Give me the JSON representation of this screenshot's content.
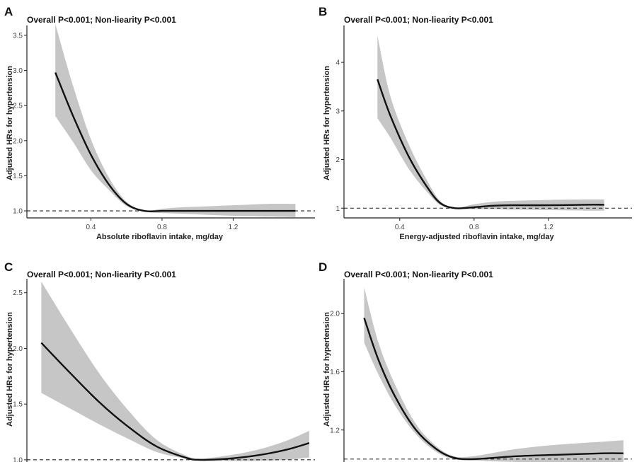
{
  "chart_data": [
    {
      "type": "line",
      "panel_label": "A",
      "title": "Overall P<0.001; Non-liearity P<0.001",
      "xlabel": "Absolute riboflavin intake, mg/day",
      "ylabel": "Adjusted HRs for hypertension",
      "xlim": [
        0.04,
        1.66
      ],
      "ylim": [
        0.9,
        3.6
      ],
      "xticks": [
        0.4,
        0.8,
        1.2
      ],
      "xtick_labels": [
        "0.4",
        "0.8",
        "1.2"
      ],
      "yticks": [
        1.0,
        1.5,
        2.0,
        2.5,
        3.0,
        3.5
      ],
      "ytick_labels": [
        "1.0",
        "1.5",
        "2.0",
        "2.5",
        "3.0",
        "3.5"
      ],
      "reference_y": 1.0,
      "series": [
        {
          "x": [
            0.2,
            0.3,
            0.4,
            0.5,
            0.6,
            0.7,
            0.8,
            0.9,
            1.0,
            1.2,
            1.4,
            1.55
          ],
          "y": [
            2.97,
            2.35,
            1.8,
            1.38,
            1.1,
            1.0,
            1.0,
            1.0,
            1.0,
            1.0,
            1.0,
            1.0
          ],
          "lower": [
            2.35,
            1.98,
            1.58,
            1.3,
            1.07,
            0.99,
            0.97,
            0.96,
            0.95,
            0.93,
            0.92,
            0.91
          ],
          "upper": [
            3.68,
            2.78,
            2.02,
            1.48,
            1.13,
            1.01,
            1.03,
            1.05,
            1.06,
            1.08,
            1.1,
            1.1
          ]
        }
      ]
    },
    {
      "type": "line",
      "panel_label": "B",
      "title": "Overall P<0.001; Non-liearity P<0.001",
      "xlabel": "Energy-adjusted riboflavin intake, mg/day",
      "ylabel": "Adjusted HRs for hypertension",
      "xlim": [
        0.1,
        1.65
      ],
      "ylim": [
        0.8,
        4.7
      ],
      "xticks": [
        0.4,
        0.8,
        1.2
      ],
      "xtick_labels": [
        "0.4",
        "0.8",
        "1.2"
      ],
      "yticks": [
        1,
        2,
        3,
        4
      ],
      "ytick_labels": [
        "1",
        "2",
        "3",
        "4"
      ],
      "reference_y": 1.0,
      "series": [
        {
          "x": [
            0.28,
            0.35,
            0.45,
            0.55,
            0.62,
            0.7,
            0.8,
            0.9,
            1.0,
            1.2,
            1.4,
            1.5
          ],
          "y": [
            3.65,
            2.9,
            2.05,
            1.42,
            1.1,
            1.0,
            1.02,
            1.05,
            1.06,
            1.06,
            1.07,
            1.07
          ],
          "lower": [
            2.85,
            2.45,
            1.8,
            1.32,
            1.06,
            0.99,
            0.98,
            0.98,
            0.97,
            0.96,
            0.95,
            0.95
          ],
          "upper": [
            4.55,
            3.3,
            2.3,
            1.55,
            1.14,
            1.01,
            1.08,
            1.13,
            1.15,
            1.17,
            1.18,
            1.18
          ]
        }
      ]
    },
    {
      "type": "line",
      "panel_label": "C",
      "title": "Overall P<0.001; Non-liearity P<0.001",
      "xlabel": "",
      "ylabel": "Adjusted HRs for hypertension",
      "xlim": [
        0,
        1
      ],
      "ylim": [
        0.98,
        2.6
      ],
      "xticks": [],
      "xtick_labels": [],
      "yticks": [
        1.0,
        1.5,
        2.0,
        2.5
      ],
      "ytick_labels": [
        "1.0",
        "1.5",
        "2.0",
        "2.5"
      ],
      "reference_y": 1.0,
      "series": [
        {
          "x": [
            0.05,
            0.15,
            0.25,
            0.35,
            0.45,
            0.55,
            0.6,
            0.7,
            0.8,
            0.9,
            0.98
          ],
          "y": [
            2.05,
            1.78,
            1.52,
            1.3,
            1.12,
            1.02,
            1.0,
            1.01,
            1.04,
            1.09,
            1.15
          ],
          "lower": [
            1.6,
            1.46,
            1.32,
            1.19,
            1.07,
            1.01,
            0.99,
            0.99,
            0.99,
            1.0,
            1.02
          ],
          "upper": [
            2.6,
            2.18,
            1.78,
            1.45,
            1.18,
            1.04,
            1.01,
            1.04,
            1.09,
            1.17,
            1.26
          ]
        }
      ]
    },
    {
      "type": "line",
      "panel_label": "D",
      "title": "Overall P<0.001; Non-liearity P<0.001",
      "xlabel": "",
      "ylabel": "Adjusted HRs for hypertension",
      "xlim": [
        0,
        1
      ],
      "ylim": [
        0.98,
        2.22
      ],
      "xticks": [],
      "xtick_labels": [],
      "yticks": [
        1.2,
        1.6,
        2.0
      ],
      "ytick_labels": [
        "1.2",
        "1.6",
        "2.0"
      ],
      "reference_y": 1.0,
      "series": [
        {
          "x": [
            0.07,
            0.12,
            0.18,
            0.25,
            0.32,
            0.38,
            0.45,
            0.6,
            0.75,
            0.9,
            0.97
          ],
          "y": [
            1.97,
            1.68,
            1.42,
            1.2,
            1.07,
            1.01,
            1.0,
            1.02,
            1.03,
            1.04,
            1.04
          ],
          "lower": [
            1.8,
            1.58,
            1.36,
            1.17,
            1.05,
            1.0,
            0.99,
            0.98,
            0.98,
            0.97,
            0.97
          ],
          "upper": [
            2.18,
            1.8,
            1.5,
            1.24,
            1.09,
            1.02,
            1.02,
            1.07,
            1.1,
            1.12,
            1.13
          ]
        }
      ]
    }
  ]
}
